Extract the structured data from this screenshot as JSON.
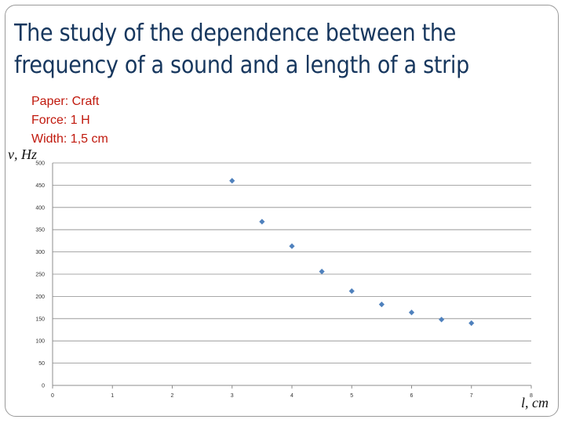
{
  "slide": {
    "title_lines": [
      "The study of the dependence between the",
      "frequency of a sound and a length of a strip"
    ],
    "params": [
      "Paper: Craft",
      "Force: 1 H",
      "Width: 1,5 cm"
    ]
  },
  "chart_data": {
    "type": "scatter",
    "title": "",
    "xlabel": "l, cm",
    "ylabel": "ν, Hz",
    "xlim": [
      0,
      8
    ],
    "ylim": [
      0,
      500
    ],
    "x_ticks": [
      "0",
      "1",
      "2",
      "3",
      "4",
      "5",
      "6",
      "7",
      "8"
    ],
    "y_ticks": [
      "0",
      "50",
      "100",
      "150",
      "200",
      "250",
      "300",
      "350",
      "400",
      "450",
      "500"
    ],
    "grid": "horizontal",
    "marker": "diamond",
    "marker_color": "#4f81bd",
    "series": [
      {
        "x": [
          3,
          3.5,
          4,
          4.5,
          5,
          5.5,
          6,
          6.5,
          7
        ],
        "y": [
          460,
          368,
          313,
          256,
          212,
          182,
          164,
          148,
          140
        ]
      }
    ]
  }
}
